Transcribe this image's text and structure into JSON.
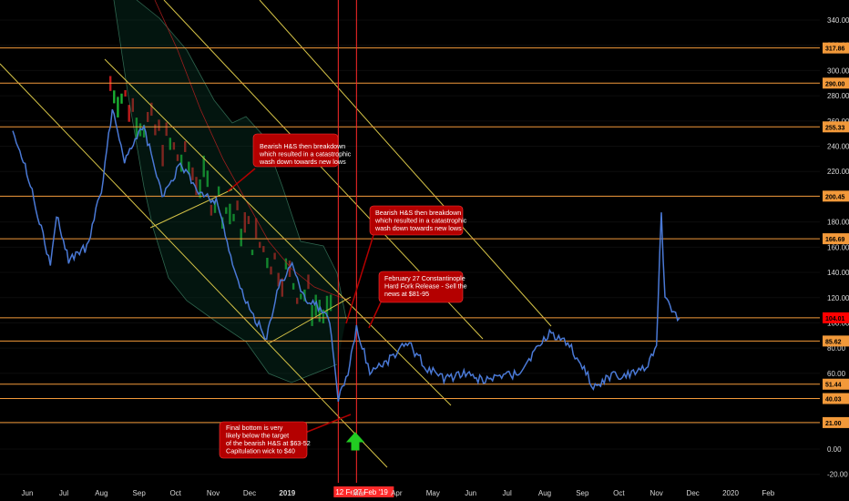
{
  "chart_data": {
    "type": "line",
    "y_ticks": [
      -20,
      0,
      20,
      40,
      60,
      80,
      100,
      120,
      140,
      160,
      180,
      200,
      220,
      240,
      260,
      280,
      300,
      320,
      340
    ],
    "x_ticks": [
      "Jun",
      "Jul",
      "Aug",
      "Sep",
      "Oct",
      "Nov",
      "Dec",
      "2019",
      "Mar",
      "Apr",
      "May",
      "Jun",
      "Jul",
      "Aug",
      "Sep",
      "Oct",
      "Nov",
      "Dec",
      "2020",
      "Feb"
    ],
    "levels": [
      {
        "label": "317.86",
        "value": 317.86
      },
      {
        "label": "290.00",
        "value": 290.0
      },
      {
        "label": "255.33",
        "value": 255.33
      },
      {
        "label": "200.45",
        "value": 200.45
      },
      {
        "label": "166.69",
        "value": 166.69
      },
      {
        "label": "104.01",
        "value": 104.01,
        "current": true
      },
      {
        "label": "85.62",
        "value": 85.62
      },
      {
        "label": "51.44",
        "value": 51.44
      },
      {
        "label": "40.03",
        "value": 40.03
      },
      {
        "label": "21.00",
        "value": 21.0
      }
    ],
    "vertical_markers": [
      "12 Feb '19",
      "27 Feb '19"
    ],
    "price_series": [
      {
        "x": "2018-05-20",
        "y": 255
      },
      {
        "x": "2018-06-05",
        "y": 205
      },
      {
        "x": "2018-06-20",
        "y": 145
      },
      {
        "x": "2018-06-25",
        "y": 185
      },
      {
        "x": "2018-07-05",
        "y": 150
      },
      {
        "x": "2018-07-20",
        "y": 160
      },
      {
        "x": "2018-08-01",
        "y": 205
      },
      {
        "x": "2018-08-10",
        "y": 270
      },
      {
        "x": "2018-08-20",
        "y": 230
      },
      {
        "x": "2018-09-05",
        "y": 255
      },
      {
        "x": "2018-09-20",
        "y": 200
      },
      {
        "x": "2018-10-05",
        "y": 225
      },
      {
        "x": "2018-10-20",
        "y": 205
      },
      {
        "x": "2018-11-05",
        "y": 195
      },
      {
        "x": "2018-11-20",
        "y": 135
      },
      {
        "x": "2018-12-01",
        "y": 110
      },
      {
        "x": "2018-12-15",
        "y": 88
      },
      {
        "x": "2018-12-25",
        "y": 130
      },
      {
        "x": "2019-01-05",
        "y": 145
      },
      {
        "x": "2019-01-15",
        "y": 120
      },
      {
        "x": "2019-01-25",
        "y": 115
      },
      {
        "x": "2019-02-05",
        "y": 100
      },
      {
        "x": "2019-02-12",
        "y": 40
      },
      {
        "x": "2019-02-20",
        "y": 60
      },
      {
        "x": "2019-02-27",
        "y": 96
      },
      {
        "x": "2019-03-10",
        "y": 62
      },
      {
        "x": "2019-03-25",
        "y": 70
      },
      {
        "x": "2019-04-10",
        "y": 85
      },
      {
        "x": "2019-04-25",
        "y": 65
      },
      {
        "x": "2019-05-10",
        "y": 55
      },
      {
        "x": "2019-05-25",
        "y": 60
      },
      {
        "x": "2019-06-10",
        "y": 55
      },
      {
        "x": "2019-06-25",
        "y": 57
      },
      {
        "x": "2019-07-10",
        "y": 60
      },
      {
        "x": "2019-07-25",
        "y": 78
      },
      {
        "x": "2019-08-05",
        "y": 92
      },
      {
        "x": "2019-08-20",
        "y": 85
      },
      {
        "x": "2019-09-01",
        "y": 65
      },
      {
        "x": "2019-09-10",
        "y": 50
      },
      {
        "x": "2019-09-25",
        "y": 58
      },
      {
        "x": "2019-10-10",
        "y": 60
      },
      {
        "x": "2019-10-25",
        "y": 65
      },
      {
        "x": "2019-11-01",
        "y": 85
      },
      {
        "x": "2019-11-05",
        "y": 185
      },
      {
        "x": "2019-11-08",
        "y": 120
      },
      {
        "x": "2019-11-15",
        "y": 108
      },
      {
        "x": "2019-11-20",
        "y": 104
      }
    ],
    "annotations": [
      "Bearish H&S then breakdown which resulted in a catastrophic wash down towards new lows",
      "Bearish H&S then breakdown which resulted in a catastrophic wash down towards new lows",
      "February 27 Constantinople Hard Fork Release - Sell the news at $81-95",
      "Final bottom is very likely below the target of the bearish H&S at $63-52 Capitulation wick to $40"
    ]
  },
  "colors": {
    "background": "#000000",
    "price_line": "#4a79d6",
    "level_line": "#f2993a",
    "trendline": "#d6c447",
    "marker_line": "#ff2a2a",
    "note_fill": "#b40000",
    "current_badge": "#ff0000",
    "arrow": "#22cc22"
  },
  "icons": {
    "bottom_arrow": "up-arrow-icon"
  }
}
